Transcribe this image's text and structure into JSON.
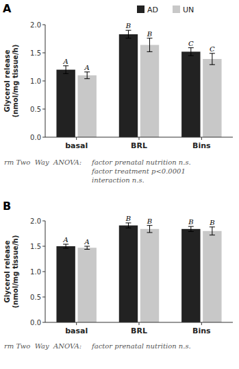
{
  "chart_data": [
    {
      "type": "bar",
      "title": "A",
      "categories": [
        "basal",
        "BRL",
        "Bins"
      ],
      "series": [
        {
          "name": "AD",
          "color": "#222222",
          "values": [
            1.2,
            1.83,
            1.52
          ],
          "errors": [
            0.07,
            0.07,
            0.07
          ],
          "letters": [
            "A",
            "B",
            "C"
          ]
        },
        {
          "name": "UN",
          "color": "#c8c8c8",
          "values": [
            1.1,
            1.64,
            1.39
          ],
          "errors": [
            0.06,
            0.12,
            0.1
          ],
          "letters": [
            "A",
            "B",
            "C"
          ]
        }
      ],
      "ylim": [
        0,
        2.0
      ],
      "yticks": [
        {
          "value": 0.0,
          "label": "0.0"
        },
        0.5,
        {
          "value": 1.0,
          "label": "1.0"
        },
        1.5,
        {
          "value": 2.0,
          "label": "2.0"
        }
      ],
      "y_label": "Glycerol release\n(nmol/mg tissue/h)",
      "annotations": [
        "rm Two  Way  ANOVA:",
        "factor prenatal nutrition n.s.",
        "factor treatment p<0.0001",
        "interaction n.s."
      ],
      "grid": false,
      "legend": "top"
    },
    {
      "type": "bar",
      "title": "B",
      "categories": [
        "basal",
        "BRL",
        "Bins"
      ],
      "series": [
        {
          "name": "AD",
          "color": "#222222",
          "values": [
            1.5,
            1.91,
            1.84
          ],
          "errors": [
            0.04,
            0.05,
            0.05
          ],
          "letters": [
            "A",
            "B",
            "B"
          ]
        },
        {
          "name": "UN",
          "color": "#c8c8c8",
          "values": [
            1.47,
            1.84,
            1.8
          ],
          "errors": [
            0.03,
            0.07,
            0.08
          ],
          "letters": [
            "A",
            "B",
            "B"
          ]
        }
      ],
      "ylim": [
        0,
        2.0
      ],
      "yticks": [
        {
          "value": 0.0,
          "label": "0.0"
        },
        0.5,
        {
          "value": 1.0,
          "label": "1.0"
        },
        1.5,
        {
          "value": 2.0,
          "label": "2.0"
        }
      ],
      "y_label": "Glycerol release\n(nmol/mg tissue/h)",
      "annotations": [
        "rm Two  Way  ANOVA:",
        "factor prenatal nutrition n.s."
      ],
      "grid": false
    }
  ]
}
